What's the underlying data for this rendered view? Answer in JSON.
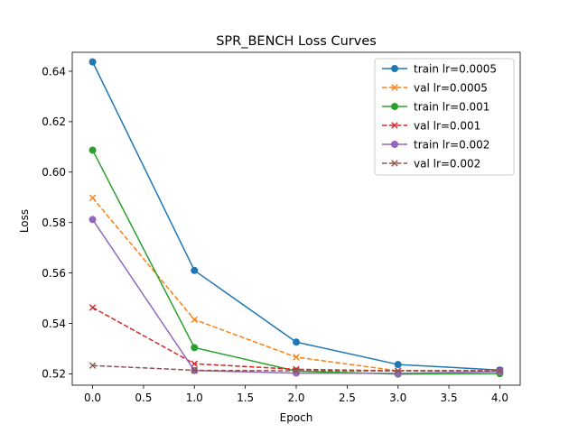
{
  "chart_data": {
    "type": "line",
    "title": "SPR_BENCH Loss Curves",
    "xlabel": "Epoch",
    "ylabel": "Loss",
    "xlim": [
      -0.2,
      4.2
    ],
    "ylim": [
      0.5155,
      0.6475
    ],
    "xticks": [
      0.0,
      0.5,
      1.0,
      1.5,
      2.0,
      2.5,
      3.0,
      3.5,
      4.0
    ],
    "xtick_labels": [
      "0.0",
      "0.5",
      "1.0",
      "1.5",
      "2.0",
      "2.5",
      "3.0",
      "3.5",
      "4.0"
    ],
    "yticks": [
      0.52,
      0.54,
      0.56,
      0.58,
      0.6,
      0.62,
      0.64
    ],
    "ytick_labels": [
      "0.52",
      "0.54",
      "0.56",
      "0.58",
      "0.60",
      "0.62",
      "0.64"
    ],
    "grid": false,
    "legend_position": "top-right",
    "x": [
      0,
      1,
      2,
      3,
      4
    ],
    "series": [
      {
        "name": "train lr=0.0005",
        "values": [
          0.6437,
          0.561,
          0.5326,
          0.5237,
          0.5215
        ],
        "color": "#1f77b4",
        "linestyle": "solid",
        "marker": "circle"
      },
      {
        "name": "val lr=0.0005",
        "values": [
          0.5898,
          0.5415,
          0.5266,
          0.5212,
          0.5213
        ],
        "color": "#ff7f0e",
        "linestyle": "dashed",
        "marker": "x"
      },
      {
        "name": "train lr=0.001",
        "values": [
          0.6087,
          0.5304,
          0.5211,
          0.5199,
          0.5201
        ],
        "color": "#2ca02c",
        "linestyle": "solid",
        "marker": "circle"
      },
      {
        "name": "val lr=0.001",
        "values": [
          0.5463,
          0.524,
          0.5218,
          0.5212,
          0.5213
        ],
        "color": "#d62728",
        "linestyle": "dashed",
        "marker": "x"
      },
      {
        "name": "train lr=0.002",
        "values": [
          0.5812,
          0.5213,
          0.5203,
          0.5202,
          0.5209
        ],
        "color": "#9467bd",
        "linestyle": "solid",
        "marker": "circle"
      },
      {
        "name": "val lr=0.002",
        "values": [
          0.5233,
          0.5214,
          0.5212,
          0.5212,
          0.5213
        ],
        "color": "#8c564b",
        "linestyle": "dashed",
        "marker": "x"
      }
    ]
  }
}
